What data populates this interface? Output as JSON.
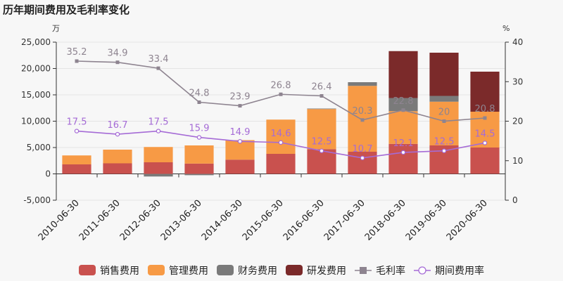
{
  "chart_data": {
    "type": "bar",
    "title": "历年期间费用及毛利率变化",
    "left_unit": "万",
    "right_unit": "%",
    "categories": [
      "2010-06-30",
      "2011-06-30",
      "2012-06-30",
      "2013-06-30",
      "2014-06-30",
      "2015-06-30",
      "2016-06-30",
      "2017-06-30",
      "2018-06-30",
      "2019-06-30",
      "2020-06-30"
    ],
    "ylim": [
      -5000,
      25000
    ],
    "yticks": [
      "-5,000",
      "0",
      "5,000",
      "10,000",
      "15,000",
      "20,000",
      "25,000"
    ],
    "ytick_values": [
      -5000,
      0,
      5000,
      10000,
      15000,
      20000,
      25000
    ],
    "y2lim": [
      0,
      40
    ],
    "y2ticks": [
      "0",
      "10",
      "20",
      "30",
      "40"
    ],
    "y2tick_values": [
      0,
      10,
      20,
      30,
      40
    ],
    "bar_series": [
      {
        "name": "销售费用",
        "color": "#c9514e",
        "values": [
          1800,
          2000,
          2200,
          1950,
          2700,
          3800,
          4700,
          4200,
          5700,
          5400,
          5000
        ]
      },
      {
        "name": "管理费用",
        "color": "#f79a45",
        "values": [
          1700,
          2600,
          2900,
          3450,
          3700,
          6500,
          7600,
          12500,
          6200,
          8300,
          6800
        ]
      },
      {
        "name": "财务费用",
        "color": "#7a7a7a",
        "values": [
          0,
          0,
          -500,
          -250,
          0,
          0,
          100,
          700,
          2500,
          1100,
          0
        ]
      },
      {
        "name": "研发费用",
        "color": "#7b2a2a",
        "values": [
          0,
          0,
          0,
          0,
          0,
          0,
          0,
          0,
          8900,
          8200,
          7600
        ]
      }
    ],
    "line_series": [
      {
        "name": "毛利率",
        "color": "#8e8490",
        "marker": "square",
        "values": [
          35.2,
          34.9,
          33.4,
          24.8,
          23.9,
          26.8,
          26.4,
          20.3,
          22.8,
          20,
          20.8
        ],
        "labels": [
          "35.2",
          "34.9",
          "33.4",
          "24.8",
          "23.9",
          "26.8",
          "26.4",
          "20.3",
          "22.8",
          "20",
          "20.8"
        ]
      },
      {
        "name": "期间费用率",
        "color": "#a56bd6",
        "marker": "circle",
        "values": [
          17.5,
          16.7,
          17.5,
          15.9,
          14.9,
          14.6,
          12.5,
          10.7,
          12.1,
          12.5,
          14.5
        ],
        "labels": [
          "17.5",
          "16.7",
          "17.5",
          "15.9",
          "14.9",
          "14.6",
          "12.5",
          "10.7",
          "12.1",
          "12.5",
          "14.5"
        ]
      }
    ]
  }
}
